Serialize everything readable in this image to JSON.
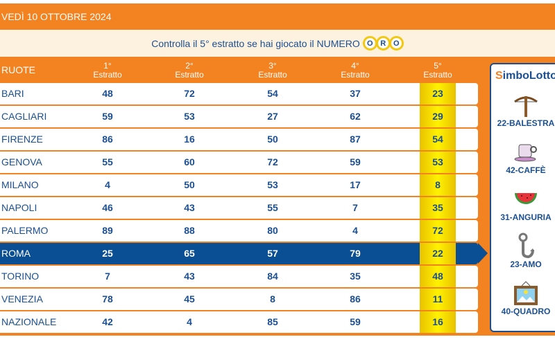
{
  "date": "VEDÌ 10 OTTOBRE 2024",
  "banner": {
    "text": "Controlla il 5° estratto se hai giocato il NUMERO",
    "oro": [
      "O",
      "R",
      "O"
    ]
  },
  "headers": {
    "ruote": "RUOTE",
    "cols": [
      [
        "1°",
        "Estratto"
      ],
      [
        "2°",
        "Estratto"
      ],
      [
        "3°",
        "Estratto"
      ],
      [
        "4°",
        "Estratto"
      ],
      [
        "5°",
        "Estratto"
      ]
    ]
  },
  "rows": [
    {
      "name": "BARI",
      "n": [
        "48",
        "72",
        "54",
        "37",
        "23"
      ]
    },
    {
      "name": "CAGLIARI",
      "n": [
        "59",
        "53",
        "27",
        "62",
        "29"
      ]
    },
    {
      "name": "FIRENZE",
      "n": [
        "86",
        "16",
        "50",
        "87",
        "54"
      ]
    },
    {
      "name": "GENOVA",
      "n": [
        "55",
        "60",
        "72",
        "59",
        "53"
      ]
    },
    {
      "name": "MILANO",
      "n": [
        "4",
        "50",
        "53",
        "17",
        "8"
      ]
    },
    {
      "name": "NAPOLI",
      "n": [
        "46",
        "43",
        "55",
        "7",
        "35"
      ]
    },
    {
      "name": "PALERMO",
      "n": [
        "89",
        "88",
        "80",
        "4",
        "72"
      ]
    },
    {
      "name": "ROMA",
      "n": [
        "25",
        "65",
        "57",
        "79",
        "22"
      ],
      "highlight": true
    },
    {
      "name": "TORINO",
      "n": [
        "7",
        "43",
        "84",
        "35",
        "48"
      ]
    },
    {
      "name": "VENEZIA",
      "n": [
        "78",
        "45",
        "8",
        "86",
        "11"
      ]
    },
    {
      "name": "NAZIONALE",
      "n": [
        "42",
        "4",
        "85",
        "59",
        "16"
      ]
    }
  ],
  "simbolotto": {
    "logo_a": "S",
    "logo_b": "imboLotto",
    "items": [
      {
        "label": "22-BALESTRA",
        "icon": "crossbow-icon"
      },
      {
        "label": "42-CAFFÈ",
        "icon": "coffee-cup-icon"
      },
      {
        "label": "31-ANGURIA",
        "icon": "watermelon-icon"
      },
      {
        "label": "23-AMO",
        "icon": "fishhook-icon"
      },
      {
        "label": "40-QUADRO",
        "icon": "picture-frame-icon"
      }
    ]
  },
  "colors": {
    "orange": "#f38221",
    "blue": "#1b4f91",
    "highlight": "#0a4e94",
    "gold": "#fff200"
  }
}
